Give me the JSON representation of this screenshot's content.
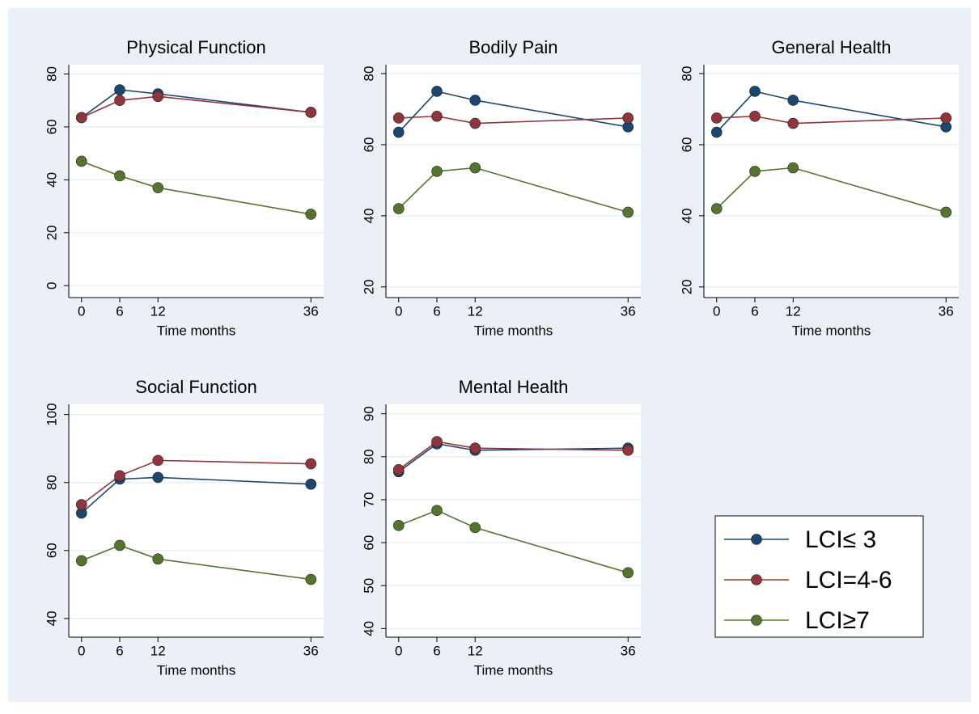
{
  "chart_data": [
    {
      "type": "line",
      "title": "Physical Function",
      "x_label": "Time months",
      "x": [
        0,
        6,
        12,
        36
      ],
      "xlim": [
        -2,
        38
      ],
      "xticks": [
        0,
        6,
        12,
        36
      ],
      "ylim": [
        -4.5,
        83.5
      ],
      "yticks": [
        0,
        20,
        40,
        60,
        80
      ],
      "grid": true,
      "series": [
        {
          "name": "LCI≤ 3",
          "color": "#1a476f",
          "values": [
            63.5,
            74,
            72.5,
            65.5
          ]
        },
        {
          "name": "LCI=4-6",
          "color": "#90353b",
          "values": [
            63.5,
            70,
            71.5,
            65.5
          ]
        },
        {
          "name": "LCI≥7",
          "color": "#55752f",
          "values": [
            47,
            41.5,
            37,
            27
          ]
        }
      ]
    },
    {
      "type": "line",
      "title": "Bodily Pain",
      "x_label": "Time months",
      "x": [
        0,
        6,
        12,
        36
      ],
      "xlim": [
        -2,
        38
      ],
      "xticks": [
        0,
        6,
        12,
        36
      ],
      "ylim": [
        17,
        82.5
      ],
      "yticks": [
        20,
        40,
        60,
        80
      ],
      "grid": true,
      "series": [
        {
          "name": "LCI≤ 3",
          "color": "#1a476f",
          "values": [
            63.5,
            75,
            72.5,
            65
          ]
        },
        {
          "name": "LCI=4-6",
          "color": "#90353b",
          "values": [
            67.5,
            68,
            66,
            67.5
          ]
        },
        {
          "name": "LCI≥7",
          "color": "#55752f",
          "values": [
            42,
            52.5,
            53.5,
            41
          ]
        }
      ]
    },
    {
      "type": "line",
      "title": "General Health",
      "x_label": "Time months",
      "x": [
        0,
        6,
        12,
        36
      ],
      "xlim": [
        -2,
        38
      ],
      "xticks": [
        0,
        6,
        12,
        36
      ],
      "ylim": [
        17,
        82.5
      ],
      "yticks": [
        20,
        40,
        60,
        80
      ],
      "grid": true,
      "series": [
        {
          "name": "LCI≤ 3",
          "color": "#1a476f",
          "values": [
            63.5,
            75,
            72.5,
            65
          ]
        },
        {
          "name": "LCI=4-6",
          "color": "#90353b",
          "values": [
            67.5,
            68,
            66,
            67.5
          ]
        },
        {
          "name": "LCI≥7",
          "color": "#55752f",
          "values": [
            42,
            52.5,
            53.5,
            41
          ]
        }
      ]
    },
    {
      "type": "line",
      "title": "Social Function",
      "x_label": "Time months",
      "x": [
        0,
        6,
        12,
        36
      ],
      "xlim": [
        -2,
        38
      ],
      "xticks": [
        0,
        6,
        12,
        36
      ],
      "ylim": [
        34.5,
        103
      ],
      "yticks": [
        40,
        60,
        80,
        100
      ],
      "grid": true,
      "series": [
        {
          "name": "LCI≤ 3",
          "color": "#1a476f",
          "values": [
            71,
            81,
            81.5,
            79.5
          ]
        },
        {
          "name": "LCI=4-6",
          "color": "#90353b",
          "values": [
            73.5,
            82,
            86.5,
            85.5
          ]
        },
        {
          "name": "LCI≥7",
          "color": "#55752f",
          "values": [
            57,
            61.5,
            57.5,
            51.5
          ]
        }
      ]
    },
    {
      "type": "line",
      "title": "Mental Health",
      "x_label": "Time months",
      "x": [
        0,
        6,
        12,
        36
      ],
      "xlim": [
        -2,
        38
      ],
      "xticks": [
        0,
        6,
        12,
        36
      ],
      "ylim": [
        38,
        92.2
      ],
      "yticks": [
        40,
        50,
        60,
        70,
        80,
        90
      ],
      "grid": true,
      "series": [
        {
          "name": "LCI≤ 3",
          "color": "#1a476f",
          "values": [
            76.5,
            83,
            81.5,
            82
          ]
        },
        {
          "name": "LCI=4-6",
          "color": "#90353b",
          "values": [
            77,
            83.5,
            82,
            81.5
          ]
        },
        {
          "name": "LCI≥7",
          "color": "#55752f",
          "values": [
            64,
            67.5,
            63.5,
            53
          ]
        }
      ]
    }
  ]
}
